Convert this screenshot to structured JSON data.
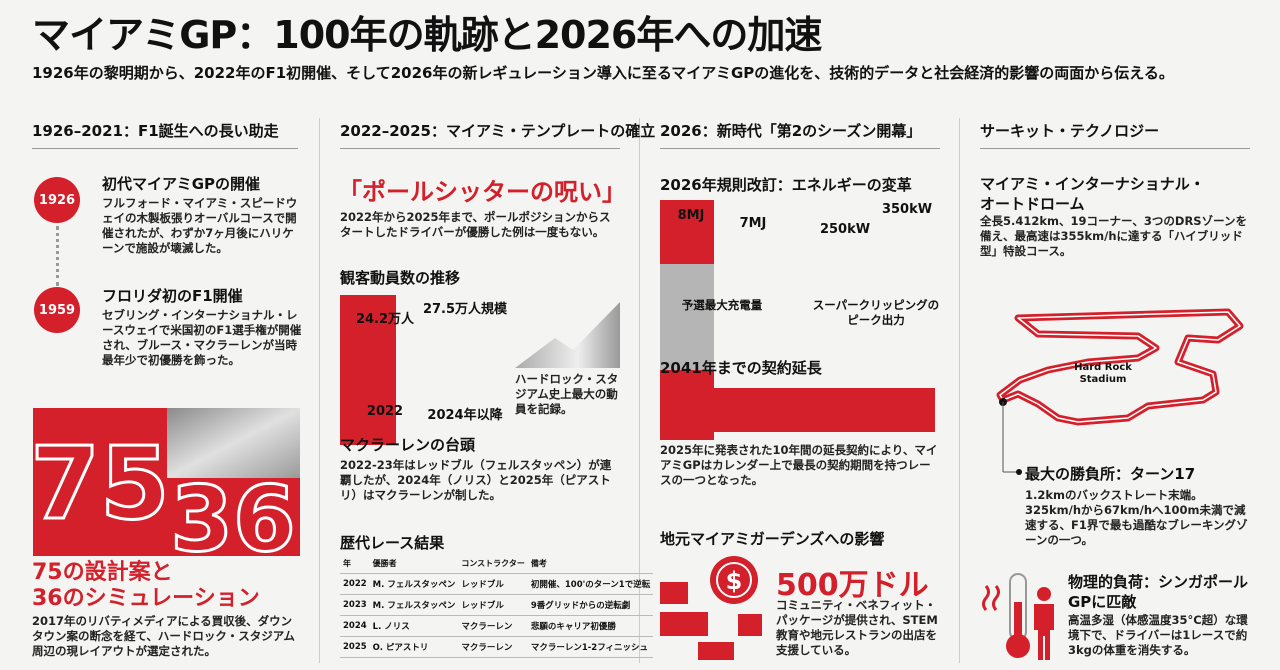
{
  "header": {
    "title": "マイアミGP：100年の軌跡と2026年への加速",
    "subtitle": "1926年の黎明期から、2022年のF1初開催、そして2026年の新レギュレーション導入に至るマイアミGPの進化を、技術的データと社会経済的影響の両面から伝える。"
  },
  "columns": [
    {
      "heading": "1926–2021：F1誕生への長い助走",
      "timeline": [
        {
          "year": "1926",
          "title": "初代マイアミGPの開催",
          "text": "フルフォード・マイアミ・スピードウェイの木製板張りオーバルコースで開催されたが、わずか7ヶ月後にハリケーンで施設が壊滅した。"
        },
        {
          "year": "1959",
          "title": "フロリダ初のF1開催",
          "text": "セブリング・インターナショナル・レースウェイで米国初のF1選手権が開催され、ブルース・マクラーレンが当時最年少で初優勝を飾った。"
        }
      ],
      "big_numbers": [
        "75",
        "36"
      ],
      "caption_lines": [
        "75の設計案と",
        "36のシミュレーション"
      ],
      "caption_text": "2017年のリバティメディアによる買収後、ダウンタウン案の断念を経て、ハードロック・スタジアム周辺の現レイアウトが選定された。"
    },
    {
      "heading": "2022–2025：マイアミ・テンプレートの確立",
      "curse": {
        "title": "「ポールシッターの呪い」",
        "text": "2022年から2025年まで、ポールポジションからスタートしたドライバーが優勝した例は一度もない。"
      },
      "attendance": {
        "title": "観客動員数の推移",
        "categories": [
          "2022",
          "2024年以降"
        ],
        "values": [
          24.2,
          27.5
        ],
        "value_labels": [
          "24.2万人",
          "27.5万人規模"
        ],
        "color": "#d3202a",
        "note": "ハードロック・スタジアム史上最大の動員を記録。"
      },
      "mclaren": {
        "title": "マクラーレンの台頭",
        "text": "2022-23年はレッドブル（フェルスタッペン）が連覇したが、2024年（ノリス）と2025年（ピアストリ）はマクラーレンが制した。"
      },
      "results": {
        "title": "歴代レース結果",
        "header": [
          "年",
          "優勝者",
          "コンストラクター",
          "備考"
        ],
        "rows": [
          [
            "2022",
            "M. フェルスタッペン",
            "レッドブル",
            "初開催、100'のターン1で逆転"
          ],
          [
            "2023",
            "M. フェルスタッペン",
            "レッドブル",
            "9番グリッドからの逆転劇"
          ],
          [
            "2024",
            "L. ノリス",
            "マクラーレン",
            "悲願のキャリア初優勝"
          ],
          [
            "2025",
            "O. ピアストリ",
            "マクラーレン",
            "マクラーレン1-2フィニッシュ"
          ]
        ]
      }
    },
    {
      "heading": "2026：新時代「第2のシーズン開幕」",
      "energy": {
        "title": "2026年規則改訂：エネルギーの変革",
        "groups": [
          {
            "label": "予選最大充電量",
            "values": [
              8,
              7
            ],
            "value_labels": [
              "8MJ",
              "7MJ"
            ],
            "colors": [
              "#d3202a",
              "#b5b5b5"
            ]
          },
          {
            "label": "スーパークリッピングのピーク出力",
            "values": [
              250,
              350
            ],
            "value_labels": [
              "250kW",
              "350kW"
            ],
            "colors": [
              "#b5b5b5",
              "#d3202a"
            ]
          }
        ]
      },
      "contract": {
        "title": "2041年までの契約延長",
        "text": "2025年に発表された10年間の延長契約により、マイアミGPはカレンダー上で最長の契約期間を持つレースの一つとなった。"
      },
      "impact": {
        "title": "地元マイアミガーデンズへの影響",
        "symbol": "$",
        "amount": "500万ドル",
        "text": "コミュニティ・ベネフィット・パッケージが提供され、STEM教育や地元レストランの出店を支援している。"
      }
    },
    {
      "heading": "サーキット・テクノロジー",
      "circuit": {
        "title": "マイアミ・インターナショナル・オートドローム",
        "text": "全長5.412km、19コーナー、3つのDRSゾーンを備え、最高速は355km/hに達する「ハイブリッド型」特設コース。",
        "map_label": "Hard Rock Stadium"
      },
      "turn17": {
        "title": "最大の勝負所：ターン17",
        "text": "1.2kmのバックストレート末端。325km/hから67km/hへ100m未満で減速する、F1界で最も過酷なブレーキングゾーンの一つ。"
      },
      "load": {
        "title": "物理的負荷：シンガポールGPに匹敵",
        "text": "高温多湿（体感温度35°C超）な環境下で、ドライバーは1レースで約3kgの体重を消失する。"
      }
    }
  ]
}
